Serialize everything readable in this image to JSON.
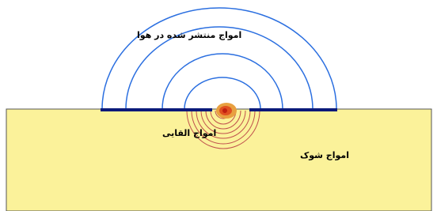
{
  "labels": {
    "air_waves": "امواج منتشر شده در هوا",
    "induced_waves": "امواج القایی",
    "shock_waves": "امواج شوک"
  }
}
